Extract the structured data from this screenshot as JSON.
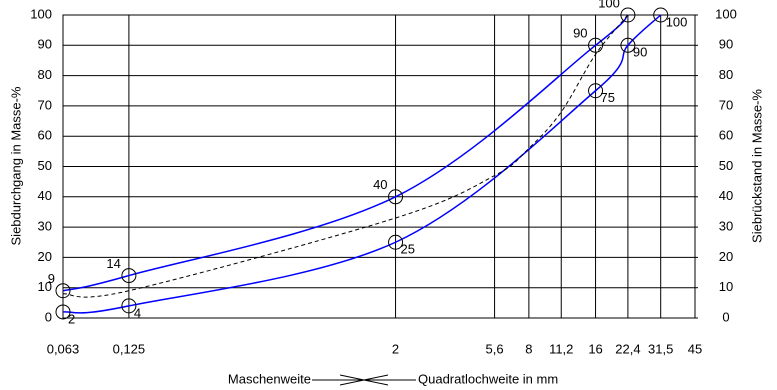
{
  "chart_data": {
    "type": "line",
    "ylabel": "Siebdurchgang in Masse-%",
    "y2label": "Siebrückstand in Masse-%",
    "xlabel_left": "Maschenweite",
    "xlabel_right": "Quadratlochweite in mm",
    "xscale": "log",
    "grid": true,
    "xlim": [
      0.063,
      45
    ],
    "xticks": [
      {
        "value": 0.063,
        "label": "0,063"
      },
      {
        "value": 0.125,
        "label": "0,125"
      },
      2,
      {
        "value": 5.6,
        "label": "5,6"
      },
      8,
      {
        "value": 11.2,
        "label": "11,2"
      },
      16,
      {
        "value": 22.4,
        "label": "22,4"
      },
      {
        "value": 31.5,
        "label": "31,5"
      },
      45
    ],
    "ylim": [
      0,
      100
    ],
    "yticks": [
      0,
      10,
      20,
      30,
      40,
      50,
      60,
      70,
      80,
      90,
      100
    ],
    "y2lim": [
      100,
      0
    ],
    "y2ticks": [
      0,
      10,
      20,
      30,
      40,
      50,
      60,
      70,
      80,
      90,
      100
    ],
    "series": [
      {
        "color": "#0000ff",
        "style": "solid",
        "markers": true,
        "label_side": "upper",
        "x": [
          0.063,
          0.125,
          2,
          16,
          22.4
        ],
        "values": [
          9,
          14,
          40,
          90,
          100
        ]
      },
      {
        "color": "#0000ff",
        "style": "solid",
        "markers": true,
        "label_side": "lower",
        "x": [
          0.063,
          0.125,
          2,
          16,
          22.4,
          31.5
        ],
        "values": [
          2,
          4,
          25,
          75,
          90,
          100
        ]
      },
      {
        "color": "#000000",
        "style": "dashed",
        "markers": false,
        "x": [
          0.063,
          0.125,
          2,
          5.6,
          8,
          11.2,
          16,
          22.4
        ],
        "values": [
          8,
          9,
          33,
          47,
          56,
          68,
          87,
          100
        ]
      }
    ]
  }
}
